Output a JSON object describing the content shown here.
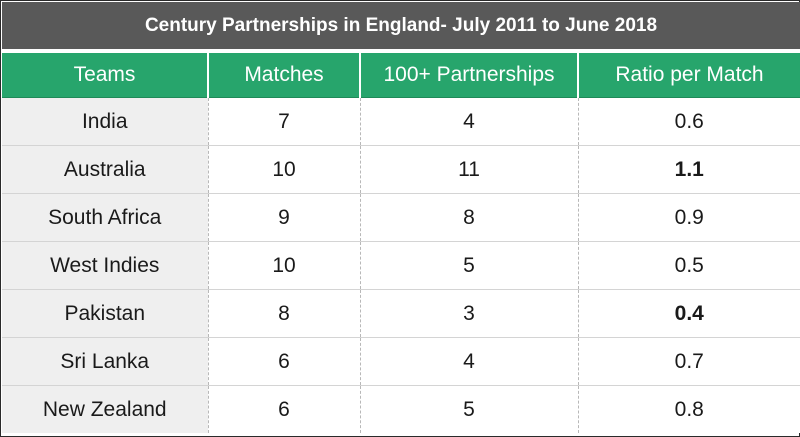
{
  "chart_data": {
    "type": "table",
    "title": "Century Partnerships in England- July 2011 to June 2018",
    "columns": [
      "Teams",
      "Matches",
      "100+ Partnerships",
      "Ratio per Match"
    ],
    "rows": [
      {
        "team": "India",
        "matches": "7",
        "partnerships": "4",
        "ratio": "0.6",
        "highlight": "none"
      },
      {
        "team": "Australia",
        "matches": "10",
        "partnerships": "11",
        "ratio": "1.1",
        "highlight": "high"
      },
      {
        "team": "South Africa",
        "matches": "9",
        "partnerships": "8",
        "ratio": "0.9",
        "highlight": "none"
      },
      {
        "team": "West Indies",
        "matches": "10",
        "partnerships": "5",
        "ratio": "0.5",
        "highlight": "none"
      },
      {
        "team": "Pakistan",
        "matches": "8",
        "partnerships": "3",
        "ratio": "0.4",
        "highlight": "low"
      },
      {
        "team": "Sri Lanka",
        "matches": "6",
        "partnerships": "4",
        "ratio": "0.7",
        "highlight": "none"
      },
      {
        "team": "New Zealand",
        "matches": "6",
        "partnerships": "5",
        "ratio": "0.8",
        "highlight": "none"
      }
    ]
  },
  "colors": {
    "title_background": "#595959",
    "header_background": "#27a56c",
    "team_column_background": "#efefef",
    "highest_ratio": "#1f9a4e",
    "lowest_ratio": "#b01c1c"
  }
}
